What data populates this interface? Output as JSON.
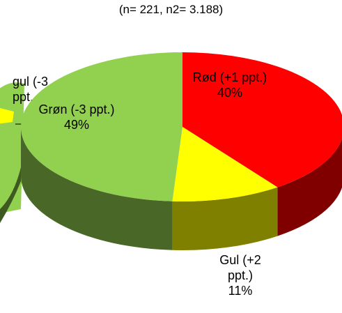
{
  "chart_data": [
    {
      "type": "pie3d",
      "subtitle": "(n= 221, n2= 3.188)",
      "categories": [
        "Rød (+1 ppt.)",
        "Gul (+2 ppt.)",
        "Grøn (-3 ppt.)"
      ],
      "values": [
        40,
        11,
        49
      ],
      "value_labels": [
        "40%",
        "11%",
        "49%"
      ],
      "colors": [
        "#ff0000",
        "#ffff00",
        "#92d050"
      ]
    },
    {
      "type": "pie3d",
      "categories": [
        "gul (-3 ppt."
      ]
    }
  ]
}
